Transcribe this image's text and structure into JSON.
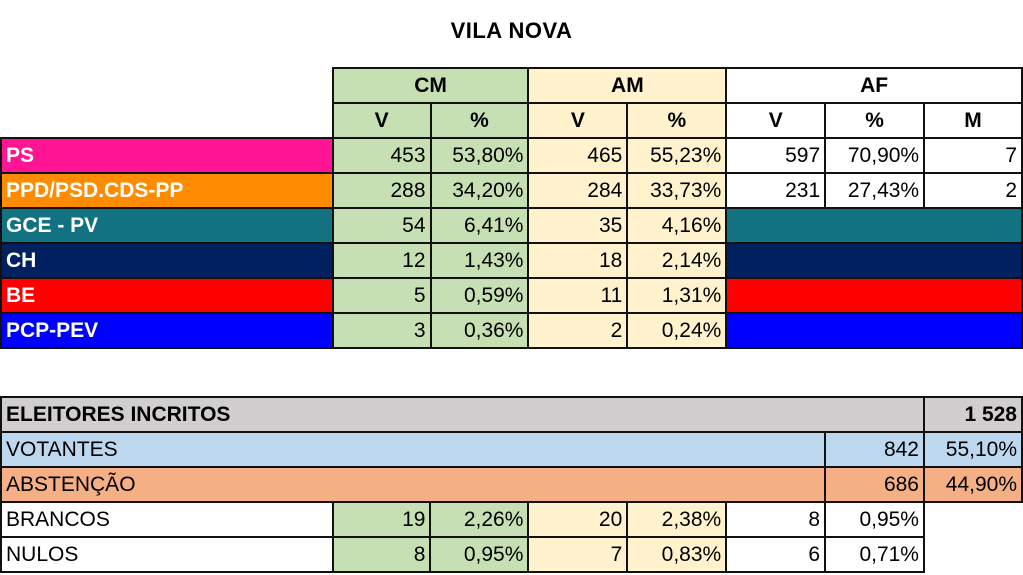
{
  "title": "VILA NOVA",
  "headers": {
    "cm": "CM",
    "am": "AM",
    "af": "AF",
    "v": "V",
    "pct": "%",
    "m": "M"
  },
  "parties": [
    {
      "name": "PS",
      "color": "#FF1493",
      "cm_v": "453",
      "cm_p": "53,80%",
      "am_v": "465",
      "am_p": "55,23%",
      "af_v": "597",
      "af_p": "70,90%",
      "af_m": "7"
    },
    {
      "name": "PPD/PSD.CDS-PP",
      "color": "#FF8C00",
      "cm_v": "288",
      "cm_p": "34,20%",
      "am_v": "284",
      "am_p": "33,73%",
      "af_v": "231",
      "af_p": "27,43%",
      "af_m": "2"
    },
    {
      "name": "GCE - PV",
      "color": "#137282",
      "cm_v": "54",
      "cm_p": "6,41%",
      "am_v": "35",
      "am_p": "4,16%"
    },
    {
      "name": "CH",
      "color": "#002060",
      "cm_v": "12",
      "cm_p": "1,43%",
      "am_v": "18",
      "am_p": "2,14%"
    },
    {
      "name": "BE",
      "color": "#FF0000",
      "cm_v": "5",
      "cm_p": "0,59%",
      "am_v": "11",
      "am_p": "1,31%"
    },
    {
      "name": "PCP-PEV",
      "color": "#0000FF",
      "cm_v": "3",
      "cm_p": "0,36%",
      "am_v": "2",
      "am_p": "0,24%"
    }
  ],
  "summary": {
    "eleitores": {
      "label": "ELEITORES INCRITOS",
      "value": "1 528"
    },
    "votantes": {
      "label": "VOTANTES",
      "v": "842",
      "p": "55,10%"
    },
    "abstencao": {
      "label": "ABSTENÇÃO",
      "v": "686",
      "p": "44,90%"
    },
    "brancos": {
      "label": "BRANCOS",
      "cm_v": "19",
      "cm_p": "2,26%",
      "am_v": "20",
      "am_p": "2,38%",
      "af_v": "8",
      "af_p": "0,95%"
    },
    "nulos": {
      "label": "NULOS",
      "cm_v": "8",
      "cm_p": "0,95%",
      "am_v": "7",
      "am_p": "0,83%",
      "af_v": "6",
      "af_p": "0,71%"
    }
  }
}
